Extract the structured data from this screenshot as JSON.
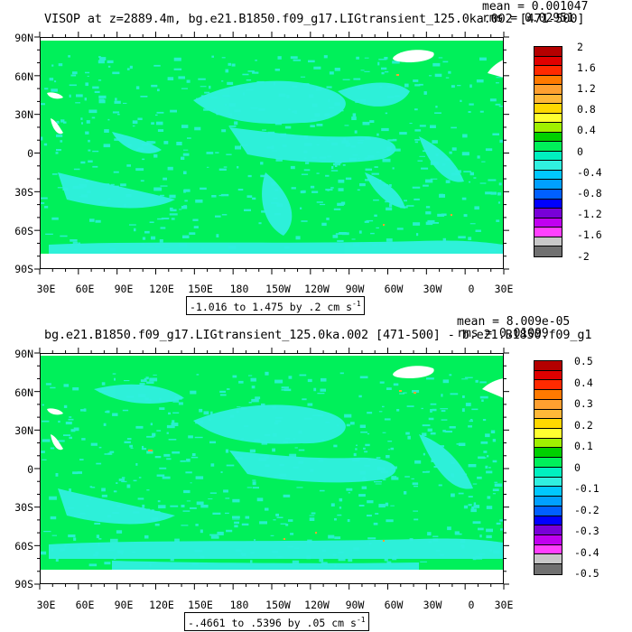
{
  "panel1": {
    "title": "VISOP at z=2889.4m, bg.e21.B1850.f09_g17.LIGtransient_125.0ka.002 [471-500]",
    "stats_mean": "mean = 0.001047",
    "stats_rms": "rms = 0.02951",
    "range_label": "-1.016 to 1.475 by .2 cm s",
    "range_unit_exp": "-1",
    "lat_labels": [
      "90N",
      "60N",
      "30N",
      "0",
      "30S",
      "60S",
      "90S"
    ],
    "lon_labels": [
      "30E",
      "60E",
      "90E",
      "120E",
      "150E",
      "180",
      "150W",
      "120W",
      "90W",
      "60W",
      "30W",
      "0",
      "30E"
    ],
    "colorbar_labels": [
      "2",
      "1.6",
      "1.2",
      "0.8",
      "0.4",
      "0",
      "-0.4",
      "-0.8",
      "-1.2",
      "-1.6",
      "-2"
    ]
  },
  "panel2": {
    "title": "bg.e21.B1850.f09_g17.LIGtransient_125.0ka.002 [471-500] - b.e21.B1850.f09_g1",
    "stats_mean": "mean = 8.009e-05",
    "stats_rms": "rms = 0.01099",
    "range_label": "-.4661 to .5396 by .05 cm s",
    "range_unit_exp": "-1",
    "lat_labels": [
      "90N",
      "60N",
      "30N",
      "0",
      "30S",
      "60S",
      "90S"
    ],
    "lon_labels": [
      "30E",
      "60E",
      "90E",
      "120E",
      "150E",
      "180",
      "150W",
      "120W",
      "90W",
      "60W",
      "30W",
      "0",
      "30E"
    ],
    "colorbar_labels": [
      "0.5",
      "0.4",
      "0.3",
      "0.2",
      "0.1",
      "0",
      "-0.1",
      "-0.2",
      "-0.3",
      "-0.4",
      "-0.5"
    ]
  },
  "colors": {
    "ocean_near_zero": "#00f05a",
    "land_mask": "#ffffff",
    "small_negative": "#30f0e0",
    "colorbar_scale": [
      "#b40000",
      "#e00000",
      "#ff2a00",
      "#ff7a00",
      "#ffa030",
      "#ffb838",
      "#ffd800",
      "#ffff30",
      "#a0f000",
      "#00d000",
      "#00f05a",
      "#00f0c0",
      "#30f0e0",
      "#00c8ff",
      "#00a0ff",
      "#0060ff",
      "#0000ff",
      "#7800d8",
      "#c000f0",
      "#ff40ff",
      "#c8c8c8",
      "#707070"
    ]
  }
}
